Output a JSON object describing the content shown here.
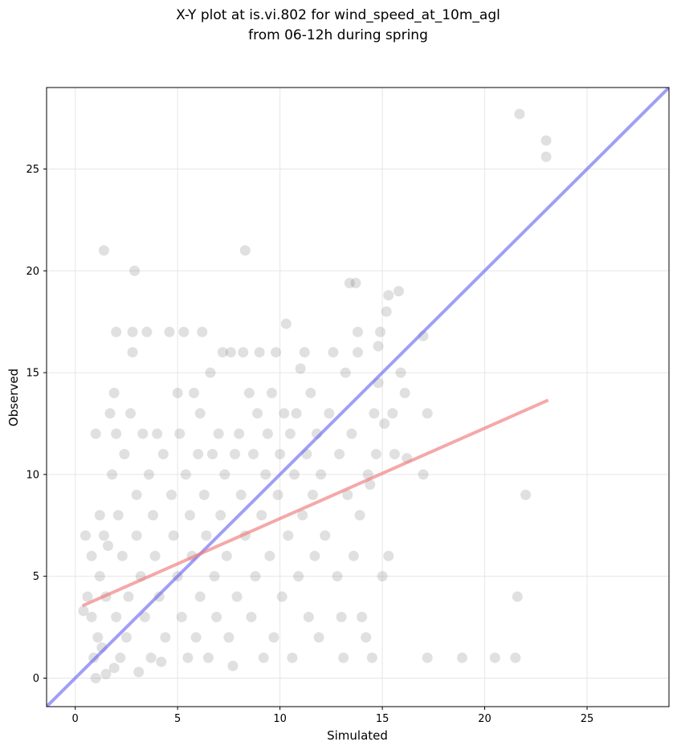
{
  "chart_data": {
    "type": "scatter",
    "title": "X-Y plot at is.vi.802 for wind_speed_at_10m_agl",
    "subtitle": "from 06-12h during spring",
    "xlabel": "Simulated",
    "ylabel": "Observed",
    "xlim": [
      -1.4,
      29.0
    ],
    "ylim": [
      -1.4,
      29.0
    ],
    "xticks": [
      0,
      5,
      10,
      15,
      20,
      25
    ],
    "yticks": [
      0,
      5,
      10,
      15,
      20,
      25
    ],
    "grid": true,
    "point_color": "#555555",
    "lines": [
      {
        "kind": "one-to-one",
        "color": "#6b6bf0",
        "points": [
          [
            -1.4,
            -1.4
          ],
          [
            29.0,
            29.0
          ]
        ]
      },
      {
        "kind": "regression",
        "color": "#f07a7a",
        "points": [
          [
            0.35,
            3.55
          ],
          [
            23.1,
            13.65
          ]
        ]
      }
    ],
    "points": [
      [
        0.4,
        3.3
      ],
      [
        0.5,
        7.0
      ],
      [
        0.6,
        4.0
      ],
      [
        0.8,
        6.0
      ],
      [
        0.8,
        3.0
      ],
      [
        0.9,
        1.0
      ],
      [
        1.0,
        12.0
      ],
      [
        1.0,
        0.0
      ],
      [
        1.1,
        2.0
      ],
      [
        1.2,
        8.0
      ],
      [
        1.2,
        5.0
      ],
      [
        1.3,
        1.5
      ],
      [
        1.4,
        21.0
      ],
      [
        1.4,
        7.0
      ],
      [
        1.5,
        4.0
      ],
      [
        1.5,
        0.2
      ],
      [
        1.6,
        6.5
      ],
      [
        1.7,
        13.0
      ],
      [
        1.8,
        10.0
      ],
      [
        1.9,
        14.0
      ],
      [
        1.9,
        0.5
      ],
      [
        2.0,
        17.0
      ],
      [
        2.0,
        12.0
      ],
      [
        2.0,
        3.0
      ],
      [
        2.1,
        8.0
      ],
      [
        2.2,
        1.0
      ],
      [
        2.3,
        6.0
      ],
      [
        2.4,
        11.0
      ],
      [
        2.5,
        2.0
      ],
      [
        2.6,
        4.0
      ],
      [
        2.7,
        13.0
      ],
      [
        2.8,
        17.0
      ],
      [
        2.8,
        16.0
      ],
      [
        2.9,
        20.0
      ],
      [
        3.0,
        9.0
      ],
      [
        3.0,
        7.0
      ],
      [
        3.1,
        0.3
      ],
      [
        3.2,
        5.0
      ],
      [
        3.3,
        12.0
      ],
      [
        3.4,
        3.0
      ],
      [
        3.5,
        17.0
      ],
      [
        3.6,
        10.0
      ],
      [
        3.7,
        1.0
      ],
      [
        3.8,
        8.0
      ],
      [
        3.9,
        6.0
      ],
      [
        4.0,
        12.0
      ],
      [
        4.1,
        4.0
      ],
      [
        4.2,
        0.8
      ],
      [
        4.3,
        11.0
      ],
      [
        4.4,
        2.0
      ],
      [
        4.6,
        17.0
      ],
      [
        4.7,
        9.0
      ],
      [
        4.8,
        7.0
      ],
      [
        5.0,
        14.0
      ],
      [
        5.0,
        5.0
      ],
      [
        5.1,
        12.0
      ],
      [
        5.2,
        3.0
      ],
      [
        5.3,
        17.0
      ],
      [
        5.4,
        10.0
      ],
      [
        5.5,
        1.0
      ],
      [
        5.6,
        8.0
      ],
      [
        5.7,
        6.0
      ],
      [
        5.8,
        14.0
      ],
      [
        5.9,
        2.0
      ],
      [
        6.0,
        11.0
      ],
      [
        6.1,
        4.0
      ],
      [
        6.1,
        13.0
      ],
      [
        6.2,
        17.0
      ],
      [
        6.3,
        9.0
      ],
      [
        6.4,
        7.0
      ],
      [
        6.5,
        1.0
      ],
      [
        6.6,
        15.0
      ],
      [
        6.7,
        11.0
      ],
      [
        6.8,
        5.0
      ],
      [
        6.9,
        3.0
      ],
      [
        7.0,
        12.0
      ],
      [
        7.1,
        8.0
      ],
      [
        7.2,
        16.0
      ],
      [
        7.3,
        10.0
      ],
      [
        7.4,
        6.0
      ],
      [
        7.5,
        2.0
      ],
      [
        7.6,
        16.0
      ],
      [
        7.7,
        0.6
      ],
      [
        7.8,
        11.0
      ],
      [
        7.9,
        4.0
      ],
      [
        8.0,
        12.0
      ],
      [
        8.1,
        9.0
      ],
      [
        8.2,
        16.0
      ],
      [
        8.3,
        21.0
      ],
      [
        8.3,
        7.0
      ],
      [
        8.5,
        14.0
      ],
      [
        8.6,
        3.0
      ],
      [
        8.7,
        11.0
      ],
      [
        8.8,
        5.0
      ],
      [
        8.9,
        13.0
      ],
      [
        9.0,
        16.0
      ],
      [
        9.1,
        8.0
      ],
      [
        9.2,
        1.0
      ],
      [
        9.3,
        10.0
      ],
      [
        9.4,
        12.0
      ],
      [
        9.5,
        6.0
      ],
      [
        9.6,
        14.0
      ],
      [
        9.7,
        2.0
      ],
      [
        9.8,
        16.0
      ],
      [
        9.9,
        9.0
      ],
      [
        10.0,
        11.0
      ],
      [
        10.1,
        4.0
      ],
      [
        10.2,
        13.0
      ],
      [
        10.3,
        17.4
      ],
      [
        10.4,
        7.0
      ],
      [
        10.5,
        12.0
      ],
      [
        10.6,
        1.0
      ],
      [
        10.7,
        10.0
      ],
      [
        10.8,
        13.0
      ],
      [
        10.9,
        5.0
      ],
      [
        11.0,
        15.2
      ],
      [
        11.1,
        8.0
      ],
      [
        11.2,
        16.0
      ],
      [
        11.3,
        11.0
      ],
      [
        11.4,
        3.0
      ],
      [
        11.5,
        14.0
      ],
      [
        11.6,
        9.0
      ],
      [
        11.7,
        6.0
      ],
      [
        11.8,
        12.0
      ],
      [
        11.9,
        2.0
      ],
      [
        12.0,
        10.0
      ],
      [
        12.2,
        7.0
      ],
      [
        12.4,
        13.0
      ],
      [
        12.6,
        16.0
      ],
      [
        12.8,
        5.0
      ],
      [
        12.9,
        11.0
      ],
      [
        13.0,
        3.0
      ],
      [
        13.1,
        1.0
      ],
      [
        13.2,
        15.0
      ],
      [
        13.3,
        9.0
      ],
      [
        13.4,
        19.4
      ],
      [
        13.5,
        12.0
      ],
      [
        13.6,
        6.0
      ],
      [
        13.7,
        19.4
      ],
      [
        13.8,
        17.0
      ],
      [
        13.8,
        16.0
      ],
      [
        13.9,
        8.0
      ],
      [
        14.0,
        3.0
      ],
      [
        14.2,
        2.0
      ],
      [
        14.3,
        10.0
      ],
      [
        14.4,
        9.5
      ],
      [
        14.5,
        1.0
      ],
      [
        14.6,
        13.0
      ],
      [
        14.7,
        11.0
      ],
      [
        14.8,
        14.5
      ],
      [
        14.8,
        16.3
      ],
      [
        14.9,
        17.0
      ],
      [
        15.0,
        5.0
      ],
      [
        15.1,
        12.5
      ],
      [
        15.2,
        18.0
      ],
      [
        15.3,
        18.8
      ],
      [
        15.3,
        6.0
      ],
      [
        15.5,
        13.0
      ],
      [
        15.6,
        11.0
      ],
      [
        15.8,
        19.0
      ],
      [
        15.9,
        15.0
      ],
      [
        16.1,
        14.0
      ],
      [
        16.2,
        10.8
      ],
      [
        17.0,
        10.0
      ],
      [
        17.0,
        16.8
      ],
      [
        17.2,
        13.0
      ],
      [
        17.2,
        1.0
      ],
      [
        18.9,
        1.0
      ],
      [
        20.5,
        1.0
      ],
      [
        21.5,
        1.0
      ],
      [
        21.6,
        4.0
      ],
      [
        21.7,
        27.7
      ],
      [
        22.0,
        9.0
      ],
      [
        23.0,
        26.4
      ],
      [
        23.0,
        25.6
      ]
    ]
  }
}
